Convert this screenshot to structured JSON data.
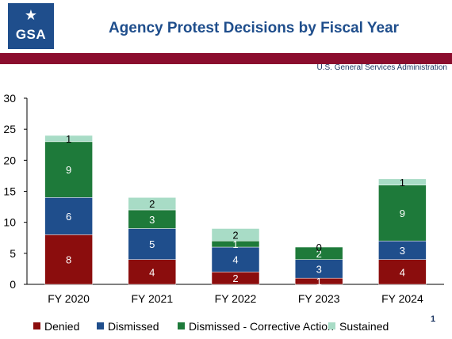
{
  "header": {
    "logo_text": "GSA",
    "title": "Agency Protest Decisions by Fiscal Year",
    "agency": "U.S. General Services Administration",
    "accent_color": "#8b0d2e",
    "brand_color": "#1f4e8c"
  },
  "page_number": "1",
  "chart_data": {
    "type": "bar",
    "stacked": true,
    "categories": [
      "FY 2020",
      "FY 2021",
      "FY 2022",
      "FY 2023",
      "FY 2024"
    ],
    "series": [
      {
        "name": "Denied",
        "color": "#8b0d0d",
        "values": [
          8,
          4,
          2,
          1,
          4
        ]
      },
      {
        "name": "Dismissed",
        "color": "#1f4e8c",
        "values": [
          6,
          5,
          4,
          3,
          3
        ]
      },
      {
        "name": "Dismissed - Corrective Action",
        "color": "#1e7a3a",
        "values": [
          9,
          3,
          1,
          2,
          9
        ]
      },
      {
        "name": "Sustained",
        "color": "#a8dcc6",
        "values": [
          1,
          2,
          2,
          0,
          1
        ]
      }
    ],
    "ylim": [
      0,
      30
    ],
    "yticks": [
      0,
      5,
      10,
      15,
      20,
      25,
      30
    ],
    "grid": false,
    "legend_position": "bottom"
  }
}
